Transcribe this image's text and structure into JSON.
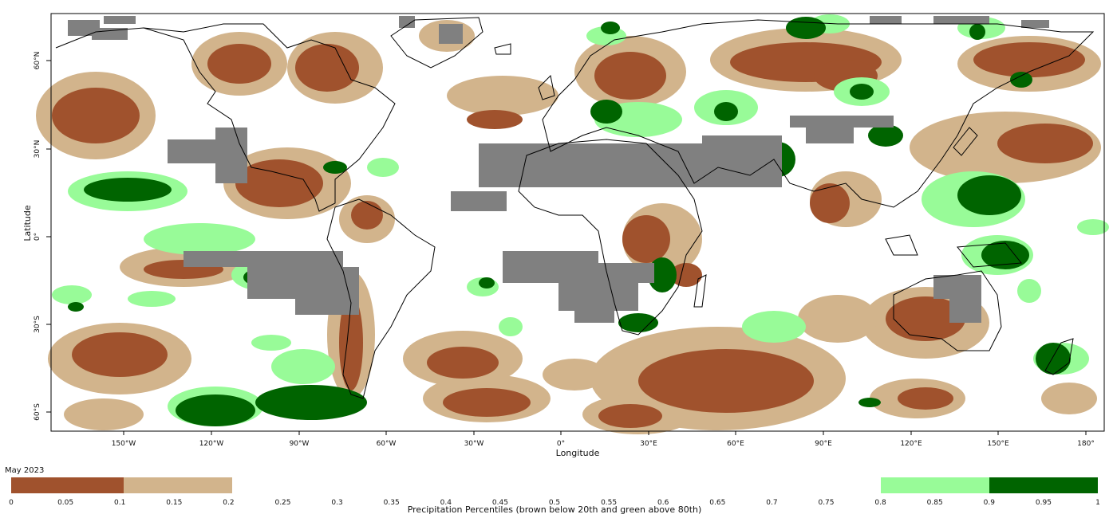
{
  "map": {
    "title": "May 2023",
    "xlabel": "Longitude",
    "ylabel": "Latitude",
    "lon_ticks": [
      "150°W",
      "120°W",
      "90°W",
      "60°W",
      "30°W",
      "0°",
      "30°E",
      "60°E",
      "90°E",
      "120°E",
      "150°E",
      "180°"
    ],
    "lat_ticks": [
      "60°N",
      "30°N",
      "0°",
      "30°S",
      "60°S"
    ],
    "colors": {
      "dry_extreme": "#a0522d",
      "dry": "#d2b48c",
      "wet": "#98fb98",
      "wet_extreme": "#006400",
      "no_data": "#808080",
      "coast": "#000000"
    }
  },
  "colorbar": {
    "ticks": [
      "0",
      "0.05",
      "0.1",
      "0.15",
      "0.2",
      "0.25",
      "0.3",
      "0.35",
      "0.4",
      "0.45",
      "0.5",
      "0.55",
      "0.6",
      "0.65",
      "0.7",
      "0.75",
      "0.8",
      "0.85",
      "0.9",
      "0.95",
      "1"
    ],
    "caption": "Precipitation Percentiles (brown below 20th and green above 80th)"
  }
}
